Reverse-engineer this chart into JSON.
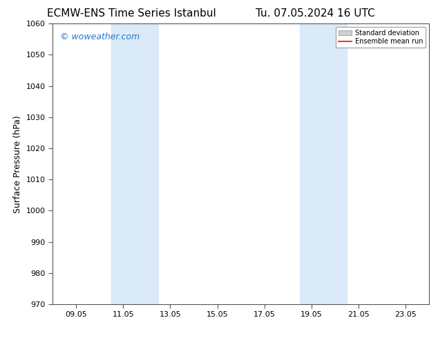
{
  "title_left": "ECMW-ENS Time Series Istanbul",
  "title_right": "Tu. 07.05.2024 16 UTC",
  "ylabel": "Surface Pressure (hPa)",
  "ylim": [
    970,
    1060
  ],
  "yticks": [
    970,
    980,
    990,
    1000,
    1010,
    1020,
    1030,
    1040,
    1050,
    1060
  ],
  "xtick_labels": [
    "09.05",
    "11.05",
    "13.05",
    "15.05",
    "17.05",
    "19.05",
    "21.05",
    "23.05"
  ],
  "xtick_positions": [
    1.0,
    3.0,
    5.0,
    7.0,
    9.0,
    11.0,
    13.0,
    15.0
  ],
  "xlim": [
    0,
    16
  ],
  "shaded_bands": [
    {
      "x_start": 2.5,
      "x_end": 4.5
    },
    {
      "x_start": 10.5,
      "x_end": 12.5
    }
  ],
  "shaded_color": "#daeaf8",
  "watermark_text": "© woweather.com",
  "watermark_color": "#2277cc",
  "legend_std_label": "Standard deviation",
  "legend_mean_label": "Ensemble mean run",
  "legend_std_color": "#d0d0d0",
  "legend_mean_color": "#ff3333",
  "bg_color": "#ffffff",
  "spine_color": "#555555",
  "tick_color": "#555555",
  "title_fontsize": 11,
  "label_fontsize": 9,
  "tick_fontsize": 8,
  "watermark_fontsize": 9
}
